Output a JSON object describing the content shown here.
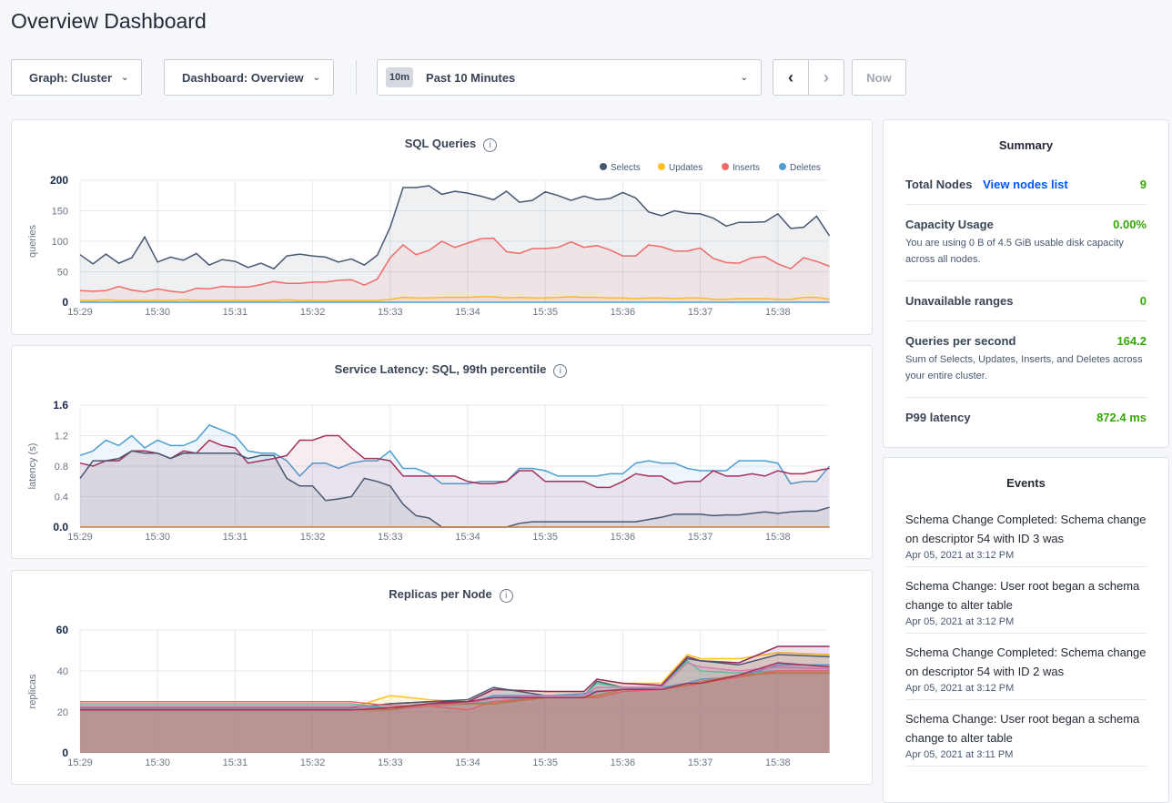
{
  "page_title": "Overview Dashboard",
  "controls": {
    "graph": "Graph: Cluster",
    "dashboard": "Dashboard: Overview",
    "time_badge": "10m",
    "time_range": "Past 10 Minutes",
    "now": "Now"
  },
  "summary": {
    "title": "Summary",
    "total_nodes_label": "Total Nodes",
    "view_nodes_link": "View nodes list",
    "total_nodes": "9",
    "capacity_label": "Capacity Usage",
    "capacity": "0.00%",
    "capacity_desc": "You are using 0 B of 4.5 GiB usable disk capacity across all nodes.",
    "unavail_label": "Unavailable ranges",
    "unavail": "0",
    "qps_label": "Queries per second",
    "qps": "164.2",
    "qps_desc": "Sum of Selects, Updates, Inserts, and Deletes across your entire cluster.",
    "p99_label": "P99 latency",
    "p99": "872.4 ms"
  },
  "events": {
    "title": "Events",
    "items": [
      {
        "text": "Schema Change Completed: Schema change on descriptor 54 with ID 3 was",
        "date": "Apr 05, 2021 at 3:12 PM"
      },
      {
        "text": "Schema Change: User root began a schema change to alter table",
        "date": "Apr 05, 2021 at 3:12 PM"
      },
      {
        "text": "Schema Change Completed: Schema change on descriptor 54 with ID 2 was",
        "date": "Apr 05, 2021 at 3:12 PM"
      },
      {
        "text": "Schema Change: User root began a schema change to alter table",
        "date": "Apr 05, 2021 at 3:11 PM"
      }
    ]
  },
  "chart_data": [
    {
      "type": "area",
      "title": "SQL Queries",
      "ylabel": "queries",
      "ylim": [
        0,
        200
      ],
      "yticks": [
        0,
        50,
        100,
        150,
        200
      ],
      "xticks": [
        "15:29",
        "15:30",
        "15:31",
        "15:32",
        "15:33",
        "15:34",
        "15:35",
        "15:36",
        "15:37",
        "15:38"
      ],
      "x_start": "15:29:00",
      "x_step_seconds": 10,
      "legend": "top-right",
      "grid": true,
      "series": [
        {
          "name": "Selects",
          "color": "#475872",
          "values": [
            78,
            63,
            79,
            64,
            73,
            107,
            66,
            74,
            69,
            80,
            61,
            70,
            67,
            57,
            64,
            55,
            76,
            79,
            76,
            74,
            66,
            71,
            61,
            77,
            123,
            188,
            188,
            191,
            177,
            182,
            179,
            174,
            168,
            182,
            164,
            167,
            181,
            175,
            167,
            174,
            168,
            170,
            180,
            171,
            148,
            142,
            150,
            146,
            145,
            138,
            125,
            131,
            131,
            132,
            145,
            121,
            123,
            141,
            109
          ]
        },
        {
          "name": "Updates",
          "color": "#ffc121",
          "values": [
            3,
            3,
            4,
            3,
            3,
            3,
            3,
            3,
            4,
            3,
            3,
            3,
            3,
            3,
            3,
            3,
            4,
            3,
            3,
            3,
            3,
            3,
            3,
            3,
            5,
            8,
            7,
            7,
            8,
            8,
            8,
            9,
            9,
            7,
            8,
            7,
            7,
            8,
            9,
            8,
            8,
            7,
            7,
            6,
            7,
            7,
            6,
            7,
            7,
            5,
            5,
            6,
            6,
            6,
            5,
            5,
            8,
            8,
            5
          ]
        },
        {
          "name": "Inserts",
          "color": "#f16969",
          "values": [
            19,
            18,
            19,
            26,
            20,
            17,
            22,
            18,
            16,
            23,
            22,
            26,
            25,
            25,
            29,
            34,
            31,
            31,
            33,
            33,
            36,
            37,
            28,
            38,
            73,
            94,
            78,
            85,
            100,
            90,
            97,
            104,
            105,
            83,
            80,
            88,
            88,
            90,
            99,
            90,
            93,
            86,
            76,
            76,
            94,
            91,
            84,
            84,
            89,
            72,
            65,
            64,
            73,
            75,
            63,
            55,
            73,
            67,
            59
          ]
        },
        {
          "name": "Deletes",
          "color": "#4e9fd1",
          "values": [
            0,
            0,
            0,
            0,
            0,
            0,
            0,
            0,
            0,
            0,
            0,
            0,
            0,
            0,
            0,
            0,
            0,
            0,
            0,
            0,
            0,
            0,
            0,
            0,
            0,
            0,
            0,
            0,
            0,
            0,
            0,
            0,
            0,
            0,
            0,
            0,
            0,
            0,
            0,
            0,
            0,
            0,
            0,
            0,
            0,
            0,
            0,
            0,
            0,
            0,
            0,
            0,
            0,
            0,
            0,
            0,
            0,
            0,
            0
          ]
        }
      ]
    },
    {
      "type": "area",
      "title": "Service Latency: SQL, 99th percentile",
      "ylabel": "latency (s)",
      "ylim": [
        0,
        1.6
      ],
      "yticks": [
        "0.0",
        "0.4",
        "0.8",
        "1.2",
        "1.6"
      ],
      "xticks": [
        "15:29",
        "15:30",
        "15:31",
        "15:32",
        "15:33",
        "15:34",
        "15:35",
        "15:36",
        "15:37",
        "15:38"
      ],
      "x_start": "15:29:00",
      "x_step_seconds": 10,
      "grid": true,
      "series": [
        {
          "color": "#4e9fd1",
          "values": [
            0.94,
            1.0,
            1.14,
            1.07,
            1.2,
            1.04,
            1.14,
            1.07,
            1.07,
            1.14,
            1.34,
            1.27,
            1.2,
            1.0,
            0.97,
            0.97,
            0.87,
            0.67,
            0.84,
            0.84,
            0.77,
            0.84,
            0.87,
            0.87,
            1.0,
            0.77,
            0.77,
            0.7,
            0.57,
            0.57,
            0.57,
            0.6,
            0.6,
            0.6,
            0.77,
            0.77,
            0.74,
            0.67,
            0.67,
            0.67,
            0.67,
            0.7,
            0.7,
            0.84,
            0.87,
            0.84,
            0.84,
            0.77,
            0.74,
            0.74,
            0.74,
            0.87,
            0.87,
            0.87,
            0.84,
            0.57,
            0.6,
            0.6,
            0.8
          ]
        },
        {
          "color": "#a6305a",
          "values": [
            0.84,
            0.8,
            0.87,
            0.87,
            1.0,
            1.0,
            0.97,
            0.9,
            1.0,
            0.97,
            1.14,
            1.07,
            1.04,
            0.84,
            0.87,
            0.9,
            0.94,
            1.14,
            1.14,
            1.2,
            1.2,
            1.04,
            0.9,
            0.9,
            0.87,
            0.67,
            0.67,
            0.67,
            0.67,
            0.67,
            0.6,
            0.57,
            0.57,
            0.6,
            0.74,
            0.74,
            0.6,
            0.6,
            0.6,
            0.6,
            0.52,
            0.52,
            0.6,
            0.7,
            0.67,
            0.67,
            0.57,
            0.6,
            0.6,
            0.74,
            0.67,
            0.67,
            0.7,
            0.67,
            0.74,
            0.7,
            0.7,
            0.74,
            0.77
          ]
        },
        {
          "color": "#475872",
          "values": [
            0.64,
            0.87,
            0.87,
            0.9,
            1.0,
            0.97,
            0.97,
            0.9,
            0.97,
            0.97,
            0.97,
            0.97,
            0.97,
            0.9,
            0.94,
            0.94,
            0.64,
            0.54,
            0.54,
            0.35,
            0.37,
            0.4,
            0.64,
            0.6,
            0.54,
            0.3,
            0.15,
            0.12,
            0,
            0,
            0,
            0,
            0,
            0,
            0.05,
            0.07,
            0.07,
            0.07,
            0.07,
            0.07,
            0.07,
            0.07,
            0.07,
            0.07,
            0.1,
            0.13,
            0.17,
            0.17,
            0.17,
            0.15,
            0.16,
            0.16,
            0.18,
            0.2,
            0.18,
            0.2,
            0.21,
            0.21,
            0.26
          ]
        },
        {
          "color": "#d07a2e",
          "values": [
            0,
            0,
            0,
            0,
            0,
            0,
            0,
            0,
            0,
            0,
            0,
            0,
            0,
            0,
            0,
            0,
            0,
            0,
            0,
            0,
            0,
            0,
            0,
            0,
            0,
            0,
            0,
            0,
            0,
            0,
            0,
            0,
            0,
            0,
            0,
            0,
            0,
            0,
            0,
            0,
            0,
            0,
            0,
            0,
            0,
            0,
            0,
            0,
            0,
            0,
            0,
            0,
            0,
            0,
            0,
            0,
            0,
            0,
            0
          ]
        }
      ]
    },
    {
      "type": "area",
      "title": "Replicas per Node",
      "ylabel": "replicas",
      "ylim": [
        0,
        60
      ],
      "yticks": [
        0,
        20,
        40,
        60
      ],
      "xticks": [
        "15:29",
        "15:30",
        "15:31",
        "15:32",
        "15:33",
        "15:34",
        "15:35",
        "15:36",
        "15:37",
        "15:38"
      ],
      "x": [
        "15:29:00",
        "15:32:30",
        "15:33:00",
        "15:33:30",
        "15:34:00",
        "15:34:20",
        "15:35:00",
        "15:35:30",
        "15:35:40",
        "15:36:00",
        "15:36:30",
        "15:36:50",
        "15:37:00",
        "15:37:30",
        "15:38:00",
        "15:38:40"
      ],
      "grid": true,
      "series": [
        {
          "color": "#ffc121",
          "values": [
            22,
            22,
            28,
            26,
            25,
            31,
            30,
            30,
            36,
            34,
            34,
            48,
            46,
            46,
            49,
            48
          ]
        },
        {
          "color": "#8e2c63",
          "values": [
            22,
            22,
            24,
            25,
            25,
            31,
            30,
            30,
            36,
            34,
            33,
            47,
            45,
            44,
            52,
            52
          ]
        },
        {
          "color": "#475872",
          "values": [
            22,
            22,
            24,
            25,
            26,
            32,
            28,
            28,
            35,
            32,
            32,
            46,
            45,
            43,
            48,
            47
          ]
        },
        {
          "color": "#4ec89a",
          "values": [
            24,
            24,
            22,
            24,
            24,
            25,
            28,
            28,
            34,
            32,
            32,
            45,
            40,
            39,
            40,
            40
          ]
        },
        {
          "color": "#4e9fd1",
          "values": [
            23,
            23,
            22,
            23,
            24,
            28,
            28,
            29,
            30,
            31,
            32,
            34,
            36,
            37,
            43,
            43
          ]
        },
        {
          "color": "#d87ab4",
          "values": [
            23,
            23,
            21,
            23,
            24,
            27,
            28,
            28,
            32,
            32,
            32,
            44,
            42,
            40,
            42,
            41
          ]
        },
        {
          "color": "#f16969",
          "values": [
            25,
            25,
            23,
            23,
            21,
            25,
            27,
            27,
            27,
            30,
            31,
            33,
            34,
            37,
            40,
            40
          ]
        },
        {
          "color": "#b8863b",
          "values": [
            21,
            21,
            21,
            24,
            24,
            24,
            27,
            27,
            28,
            31,
            31,
            33,
            35,
            38,
            39,
            39
          ]
        },
        {
          "color": "#a6305a",
          "values": [
            21,
            21,
            22,
            24,
            25,
            27,
            27,
            27,
            30,
            31,
            31,
            34,
            34,
            38,
            44,
            42
          ]
        }
      ]
    }
  ]
}
